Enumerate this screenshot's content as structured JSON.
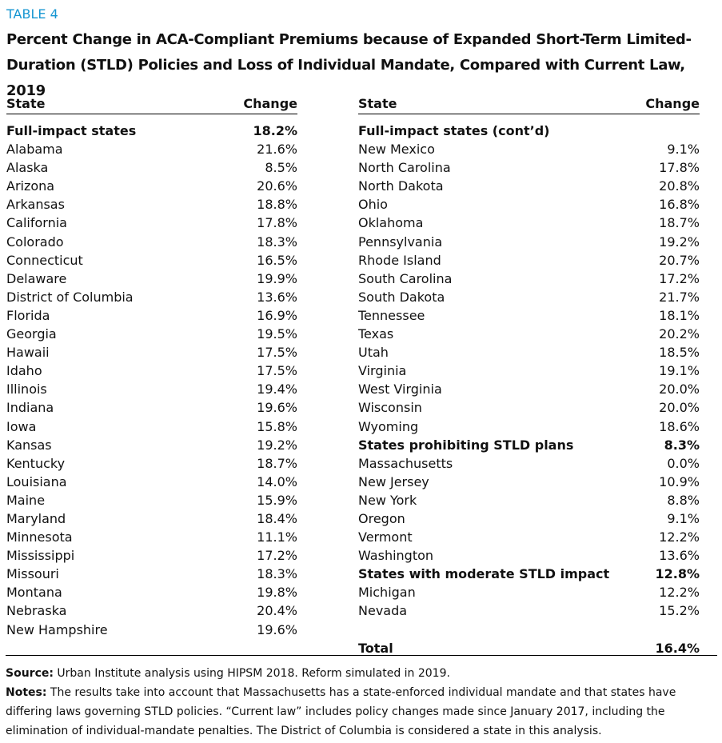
{
  "label": "TABLE 4",
  "title": "Percent Change in ACA-Compliant Premiums because of Expanded Short-Term Limited-Duration (STLD) Policies and Loss of Individual Mandate, Compared with Current Law, 2019",
  "header": {
    "state": "State",
    "change": "Change"
  },
  "left": [
    {
      "name": "Full-impact states",
      "change": "18.2%",
      "rows": [
        [
          "Alabama",
          "21.6%"
        ],
        [
          "Alaska",
          "8.5%"
        ],
        [
          "Arizona",
          "20.6%"
        ],
        [
          "Arkansas",
          "18.8%"
        ],
        [
          "California",
          "17.8%"
        ],
        [
          "Colorado",
          "18.3%"
        ],
        [
          "Connecticut",
          "16.5%"
        ],
        [
          "Delaware",
          "19.9%"
        ],
        [
          "District of Columbia",
          "13.6%"
        ],
        [
          "Florida",
          "16.9%"
        ],
        [
          "Georgia",
          "19.5%"
        ],
        [
          "Hawaii",
          "17.5%"
        ],
        [
          "Idaho",
          "17.5%"
        ],
        [
          "Illinois",
          "19.4%"
        ],
        [
          "Indiana",
          "19.6%"
        ],
        [
          "Iowa",
          "15.8%"
        ],
        [
          "Kansas",
          "19.2%"
        ],
        [
          "Kentucky",
          "18.7%"
        ],
        [
          "Louisiana",
          "14.0%"
        ],
        [
          "Maine",
          "15.9%"
        ],
        [
          "Maryland",
          "18.4%"
        ],
        [
          "Minnesota",
          "11.1%"
        ],
        [
          "Mississippi",
          "17.2%"
        ],
        [
          "Missouri",
          "18.3%"
        ],
        [
          "Montana",
          "19.8%"
        ],
        [
          "Nebraska",
          "20.4%"
        ],
        [
          "New Hampshire",
          "19.6%"
        ]
      ]
    }
  ],
  "right": [
    {
      "name": "Full-impact states (cont’d)",
      "rows": [
        [
          "New Mexico",
          "9.1%"
        ],
        [
          "North Carolina",
          "17.8%"
        ],
        [
          "North Dakota",
          "20.8%"
        ],
        [
          "Ohio",
          "16.8%"
        ],
        [
          "Oklahoma",
          "18.7%"
        ],
        [
          "Pennsylvania",
          "19.2%"
        ],
        [
          "Rhode Island",
          "20.7%"
        ],
        [
          "South Carolina",
          "17.2%"
        ],
        [
          "South Dakota",
          "21.7%"
        ],
        [
          "Tennessee",
          "18.1%"
        ],
        [
          "Texas",
          "20.2%"
        ],
        [
          "Utah",
          "18.5%"
        ],
        [
          "Virginia",
          "19.1%"
        ],
        [
          "West Virginia",
          "20.0%"
        ],
        [
          "Wisconsin",
          "20.0%"
        ],
        [
          "Wyoming",
          "18.6%"
        ]
      ]
    },
    {
      "name": "States prohibiting STLD plans",
      "change": "8.3%",
      "rows": [
        [
          "Massachusetts",
          "0.0%"
        ],
        [
          "New Jersey",
          "10.9%"
        ],
        [
          "New York",
          "8.8%"
        ],
        [
          "Oregon",
          "9.1%"
        ],
        [
          "Vermont",
          "12.2%"
        ],
        [
          "Washington",
          "13.6%"
        ]
      ]
    },
    {
      "name": "States with moderate STLD impact",
      "change": "12.8%",
      "rows": [
        [
          "Michigan",
          "12.2%"
        ],
        [
          "Nevada",
          "15.2%"
        ]
      ]
    }
  ],
  "total": {
    "name": "Total",
    "change": "16.4%"
  },
  "source": {
    "label": "Source:",
    "text": "Urban Institute analysis using HIPSM 2018. Reform simulated in 2019."
  },
  "notes": {
    "label": "Notes:",
    "text": "The results take into account that Massachusetts has a state-enforced individual mandate and that states have differing laws governing STLD policies. “Current law” includes policy changes made since January 2017, including the elimination of individual-mandate penalties. The District of Columbia is considered a state in this analysis."
  }
}
